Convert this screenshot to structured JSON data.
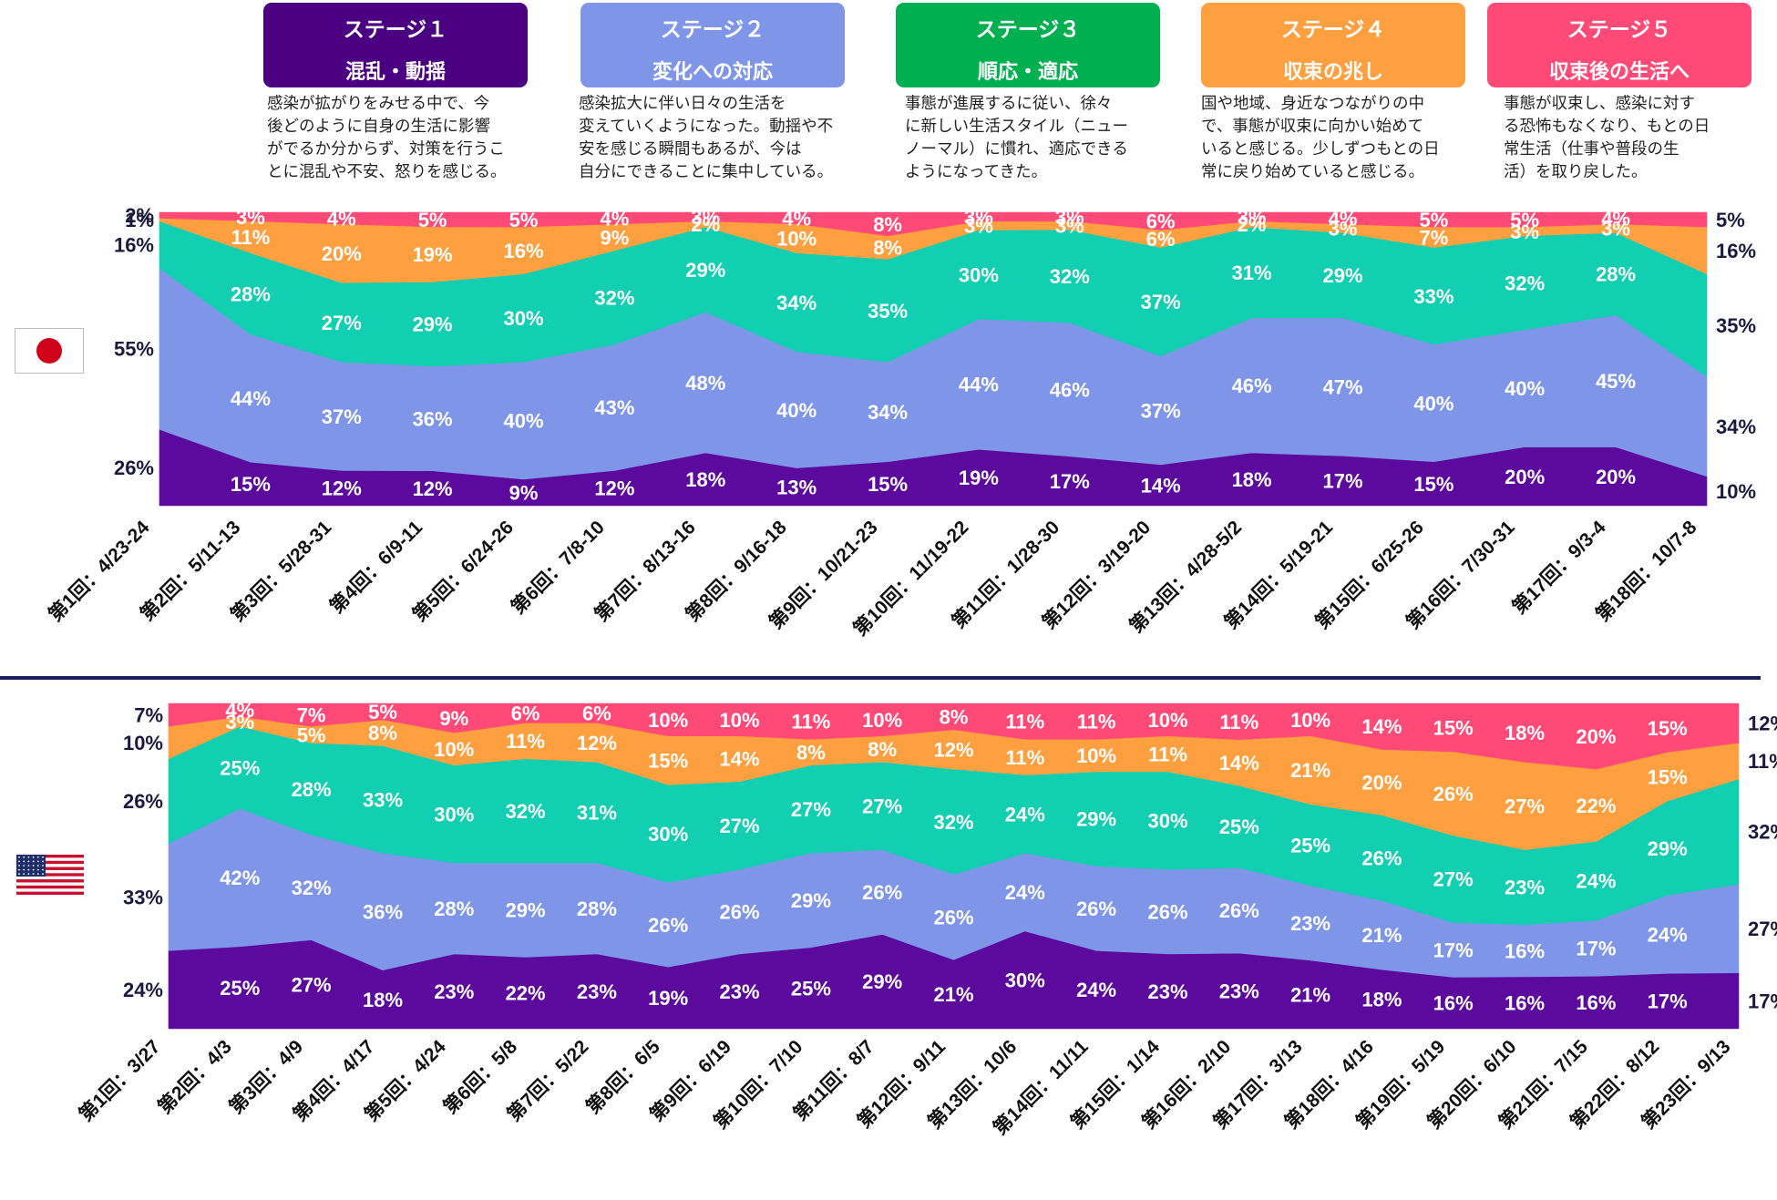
{
  "stages": [
    {
      "title": "ステージ１",
      "subtitle": "混乱・動揺",
      "color": "#4b0082",
      "desc": [
        "感染が拡がりをみせる中で、今",
        "後どのように自身の生活に影響",
        "がでるか分からず、対策を行うこ",
        "とに混乱や不安、怒りを感じる。"
      ]
    },
    {
      "title": "ステージ２",
      "subtitle": "変化への対応",
      "color": "#7f96e8",
      "desc": [
        "感染拡大に伴い日々の生活を",
        "変えていくようになった。動揺や不",
        "安を感じる瞬間もあるが、今は",
        "自分にできることに集中している。"
      ]
    },
    {
      "title": "ステージ３",
      "subtitle": "順応・適応",
      "color": "#00b050",
      "desc": [
        "事態が進展するに従い、徐々",
        "に新しい生活スタイル（ニュー",
        "ノーマル）に慣れ、適応できる",
        "ようになってきた。"
      ]
    },
    {
      "title": "ステージ４",
      "subtitle": "収束の兆し",
      "color": "#ffa040",
      "desc": [
        "国や地域、身近なつながりの中",
        "で、事態が収束に向かい始めて",
        "いると感じる。少しずつもとの日",
        "常に戻り始めていると感じる。"
      ]
    },
    {
      "title": "ステージ５",
      "subtitle": "収束後の生活へ",
      "color": "#ff4a78",
      "desc": [
        "事態が収束し、感染に対す",
        "る恐怖もなくなり、もとの日",
        "常生活（仕事や普段の生",
        "活）を取り戻した。"
      ]
    }
  ],
  "countries": {
    "japan": {
      "flag_icon": "japan-flag-icon"
    },
    "usa": {
      "flag_icon": "usa-flag-icon"
    }
  },
  "chart_data": [
    {
      "type": "area",
      "stacked": true,
      "country": "japan",
      "categories": [
        "第1回：4/23-24",
        "第2回：5/11-13",
        "第3回：5/28-31",
        "第4回：6/9-11",
        "第5回：6/24-26",
        "第6回：7/8-10",
        "第7回：8/13-16",
        "第8回：9/16-18",
        "第9回：10/21-23",
        "第10回：11/19-22",
        "第11回：1/28-30",
        "第12回：3/19-20",
        "第13回：4/28-5/2",
        "第14回：5/19-21",
        "第15回：6/25-26",
        "第16回：7/30-31",
        "第17回：9/3-4",
        "第18回：10/7-8"
      ],
      "ylim": [
        0,
        100
      ],
      "series": [
        {
          "stage": 1,
          "color": "#5c0a9e",
          "values": [
            26,
            15,
            12,
            12,
            9,
            12,
            18,
            13,
            15,
            19,
            17,
            14,
            18,
            17,
            15,
            20,
            20,
            10
          ]
        },
        {
          "stage": 2,
          "color": "#7f96e8",
          "values": [
            55,
            44,
            37,
            36,
            40,
            43,
            48,
            40,
            34,
            44,
            46,
            37,
            46,
            47,
            40,
            40,
            45,
            34
          ]
        },
        {
          "stage": 3,
          "color": "#11cfb0",
          "values": [
            16,
            28,
            27,
            29,
            30,
            32,
            29,
            34,
            35,
            30,
            32,
            37,
            31,
            29,
            33,
            32,
            28,
            35
          ]
        },
        {
          "stage": 4,
          "color": "#ffa040",
          "values": [
            1,
            11,
            20,
            19,
            16,
            9,
            2,
            10,
            8,
            3,
            3,
            6,
            2,
            3,
            7,
            3,
            3,
            16
          ]
        },
        {
          "stage": 5,
          "color": "#ff4a78",
          "values": [
            2,
            3,
            4,
            5,
            5,
            4,
            3,
            4,
            8,
            3,
            3,
            6,
            3,
            4,
            5,
            5,
            4,
            5
          ]
        }
      ]
    },
    {
      "type": "area",
      "stacked": true,
      "country": "usa",
      "categories": [
        "第1回：3/27",
        "第2回：4/3",
        "第3回：4/9",
        "第4回：4/17",
        "第5回：4/24",
        "第6回：5/8",
        "第7回：5/22",
        "第8回：6/5",
        "第9回：6/19",
        "第10回：7/10",
        "第11回：8/7",
        "第12回：9/11",
        "第13回：10/6",
        "第14回：11/11",
        "第15回：1/14",
        "第16回：2/10",
        "第17回：3/13",
        "第18回：4/16",
        "第19回：5/19",
        "第20回：6/10",
        "第21回：7/15",
        "第22回：8/12",
        "第23回：9/13"
      ],
      "ylim": [
        0,
        100
      ],
      "series": [
        {
          "stage": 1,
          "color": "#5c0a9e",
          "values": [
            24,
            25,
            27,
            18,
            23,
            22,
            23,
            19,
            23,
            25,
            29,
            21,
            30,
            24,
            23,
            23,
            21,
            18,
            16,
            16,
            16,
            17,
            17
          ]
        },
        {
          "stage": 2,
          "color": "#7f96e8",
          "values": [
            33,
            42,
            32,
            36,
            28,
            29,
            28,
            26,
            26,
            29,
            26,
            26,
            24,
            26,
            26,
            26,
            23,
            21,
            17,
            16,
            17,
            24,
            27
          ]
        },
        {
          "stage": 3,
          "color": "#11cfb0",
          "values": [
            26,
            25,
            28,
            33,
            30,
            32,
            31,
            30,
            27,
            27,
            27,
            32,
            24,
            29,
            30,
            25,
            25,
            26,
            27,
            23,
            24,
            29,
            32
          ]
        },
        {
          "stage": 4,
          "color": "#ffa040",
          "values": [
            10,
            3,
            5,
            8,
            10,
            11,
            12,
            15,
            14,
            8,
            8,
            12,
            11,
            10,
            11,
            14,
            21,
            20,
            26,
            27,
            22,
            15,
            11
          ]
        },
        {
          "stage": 5,
          "color": "#ff4a78",
          "values": [
            7,
            4,
            7,
            5,
            9,
            6,
            6,
            10,
            10,
            11,
            10,
            8,
            11,
            11,
            10,
            11,
            10,
            14,
            15,
            18,
            20,
            15,
            12
          ]
        }
      ]
    }
  ]
}
